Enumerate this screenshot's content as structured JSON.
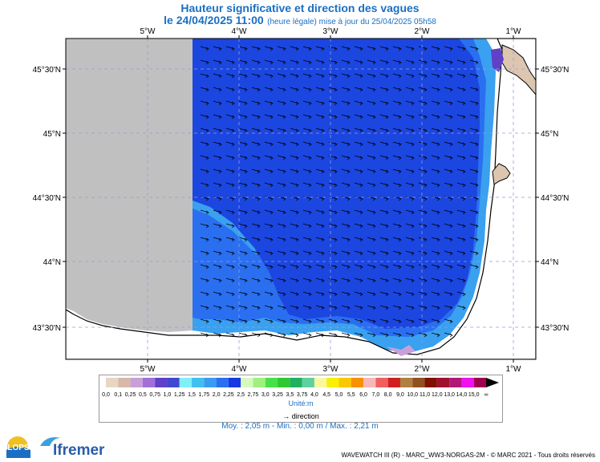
{
  "header": {
    "title": "Hauteur significative et direction des vagues",
    "datetime": "le 24/04/2025 11:00",
    "note": "(heure légale) mise à jour du 25/04/2025 05h58"
  },
  "map": {
    "lon_labels": [
      "5°W",
      "4°W",
      "3°W",
      "2°W",
      "1°W"
    ],
    "lat_labels": [
      "45°30'N",
      "45°N",
      "44°30'N",
      "44°N",
      "43°30'N"
    ]
  },
  "legend": {
    "levels": [
      "0,0",
      "0,1",
      "0,25",
      "0,5",
      "0,75",
      "1,0",
      "1,25",
      "1,5",
      "1,75",
      "2,0",
      "2,25",
      "2,5",
      "2,75",
      "3,0",
      "3,25",
      "3,5",
      "3,75",
      "4,0",
      "4,5",
      "5,0",
      "5,5",
      "6,0",
      "7,0",
      "8,0",
      "9,0",
      "10,0",
      "11,0",
      "12,0",
      "13,0",
      "14,0",
      "15,0",
      "∞"
    ],
    "colors": [
      "#e8d6c4",
      "#d8b8a8",
      "#c8a0d8",
      "#a070d8",
      "#6040c8",
      "#4048d0",
      "#80f0f8",
      "#40c0f0",
      "#3a9cf0",
      "#2a70f0",
      "#1838e0",
      "#d8f8c0",
      "#a0f080",
      "#48e048",
      "#30c830",
      "#20b060",
      "#60d0a0",
      "#f8f8a0",
      "#f8f000",
      "#f8c800",
      "#f89000",
      "#f8b8b8",
      "#f06060",
      "#d02020",
      "#b08040",
      "#905020",
      "#801000",
      "#a01030",
      "#b01878",
      "#f010f0",
      "#a00050"
    ],
    "unit": "Unité:m",
    "direction_label": "direction"
  },
  "stats": {
    "text": "Moy. : 2,05 m  -  Min. : 0,00 m / Max. : 2,21 m"
  },
  "logos": {
    "lops": "LOPS",
    "ifremer": "Ifremer"
  },
  "credits": "WAVEWATCH III (R) - MARC_WW3-NORGAS-2M - © MARC 2021 - Tous droits réservés",
  "colors": {
    "title_blue": "#1a6fc4",
    "deep_blue": "#1b46e0",
    "mid_blue": "#2a6ff0",
    "light_blue": "#3aa0f0",
    "nodata_gray": "#c0c0c0",
    "land": "#dcc6b0"
  }
}
